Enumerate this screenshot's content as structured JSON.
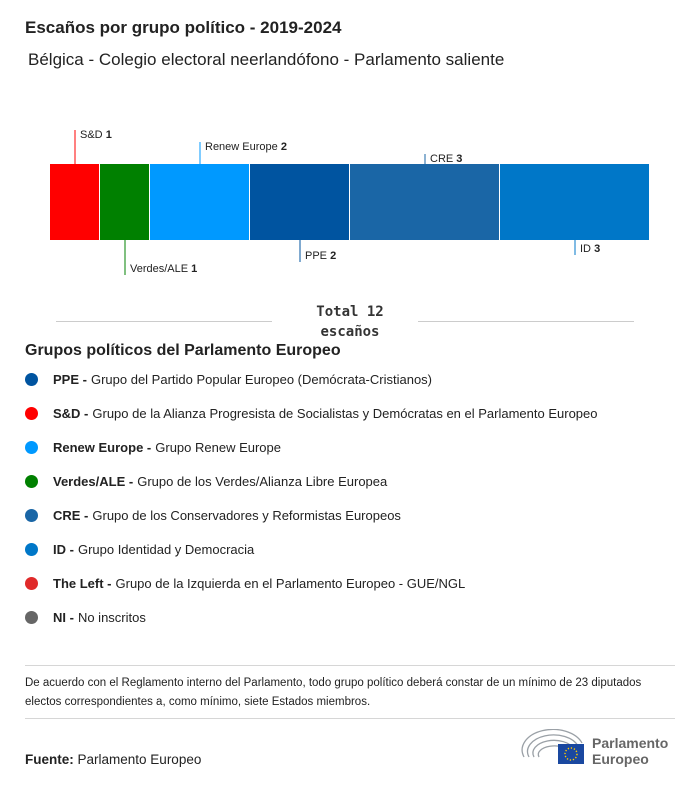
{
  "title": "Escaños por grupo político - 2019-2024",
  "subtitle": "Bélgica - Colegio electoral neerlandófono - Parlamento saliente",
  "chart_data": {
    "type": "bar",
    "orientation": "horizontal-stacked",
    "categories": [
      "S&D",
      "Verdes/ALE",
      "Renew Europe",
      "PPE",
      "CRE",
      "ID"
    ],
    "values": [
      1,
      1,
      2,
      2,
      3,
      3
    ],
    "colors": [
      "#ff0000",
      "#008000",
      "#0099ff",
      "#0054a0",
      "#1a66a6",
      "#0077c8"
    ],
    "label_positions": [
      "top",
      "bottom",
      "top",
      "bottom",
      "top",
      "bottom"
    ],
    "total_label": "Total 12",
    "total_unit": "escaños"
  },
  "legend": {
    "title": "Grupos políticos del Parlamento Europeo",
    "items": [
      {
        "abbr": "PPE -",
        "name": "Grupo del Partido Popular Europeo (Demócrata-Cristianos)",
        "color": "#0054a0"
      },
      {
        "abbr": "S&D -",
        "name": "Grupo de la Alianza Progresista de Socialistas y Demócratas en el Parlamento Europeo",
        "color": "#ff0000"
      },
      {
        "abbr": "Renew Europe -",
        "name": "Grupo Renew Europe",
        "color": "#0099ff"
      },
      {
        "abbr": "Verdes/ALE -",
        "name": "Grupo de los Verdes/Alianza Libre Europea",
        "color": "#008000"
      },
      {
        "abbr": "CRE -",
        "name": "Grupo de los Conservadores y Reformistas Europeos",
        "color": "#1a66a6"
      },
      {
        "abbr": "ID -",
        "name": "Grupo Identidad y Democracia",
        "color": "#0077c8"
      },
      {
        "abbr": "The Left -",
        "name": "Grupo de la Izquierda en el Parlamento Europeo - GUE/NGL",
        "color": "#e02a2a"
      },
      {
        "abbr": "NI -",
        "name": "No inscritos",
        "color": "#666666"
      }
    ]
  },
  "note": "De acuerdo con el Reglamento interno del Parlamento, todo grupo político deberá constar de un mínimo de 23 diputados electos correspondientes a, como mínimo, siete Estados miembros.",
  "source": {
    "label": "Fuente:",
    "value": "Parlamento Europeo"
  },
  "logo": {
    "line1": "Parlamento",
    "line2": "Europeo"
  }
}
